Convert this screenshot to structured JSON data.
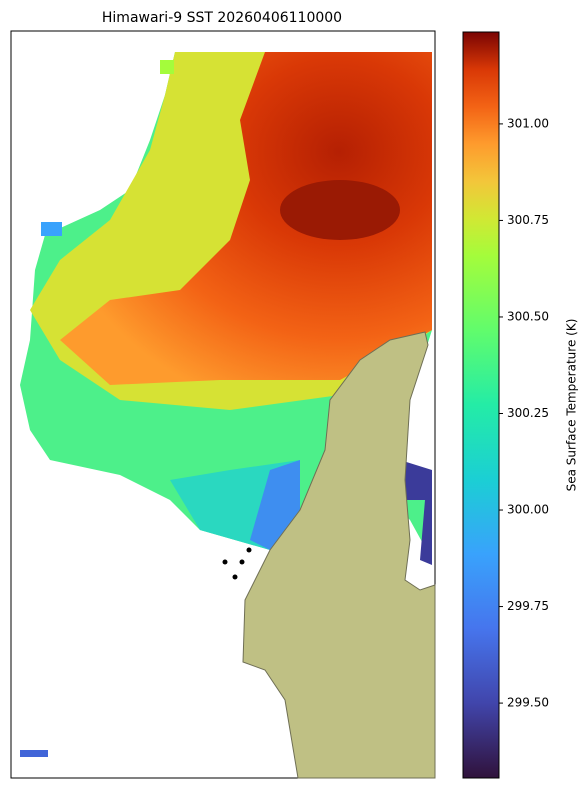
{
  "chart_data": {
    "type": "heatmap",
    "title": "Himawari-9 SST 20260406110000",
    "colorbar_label": "Sea Surface Temperature (K)",
    "colormap": "turbo",
    "clim": [
      299.306,
      301.238
    ],
    "cticks": [
      {
        "value": 299.5,
        "label": "299.50"
      },
      {
        "value": 299.75,
        "label": "299.75"
      },
      {
        "value": 300.0,
        "label": "300.00"
      },
      {
        "value": 300.25,
        "label": "300.25"
      },
      {
        "value": 300.5,
        "label": "300.50"
      },
      {
        "value": 300.75,
        "label": "300.75"
      },
      {
        "value": 301.0,
        "label": "301.00"
      }
    ]
  }
}
